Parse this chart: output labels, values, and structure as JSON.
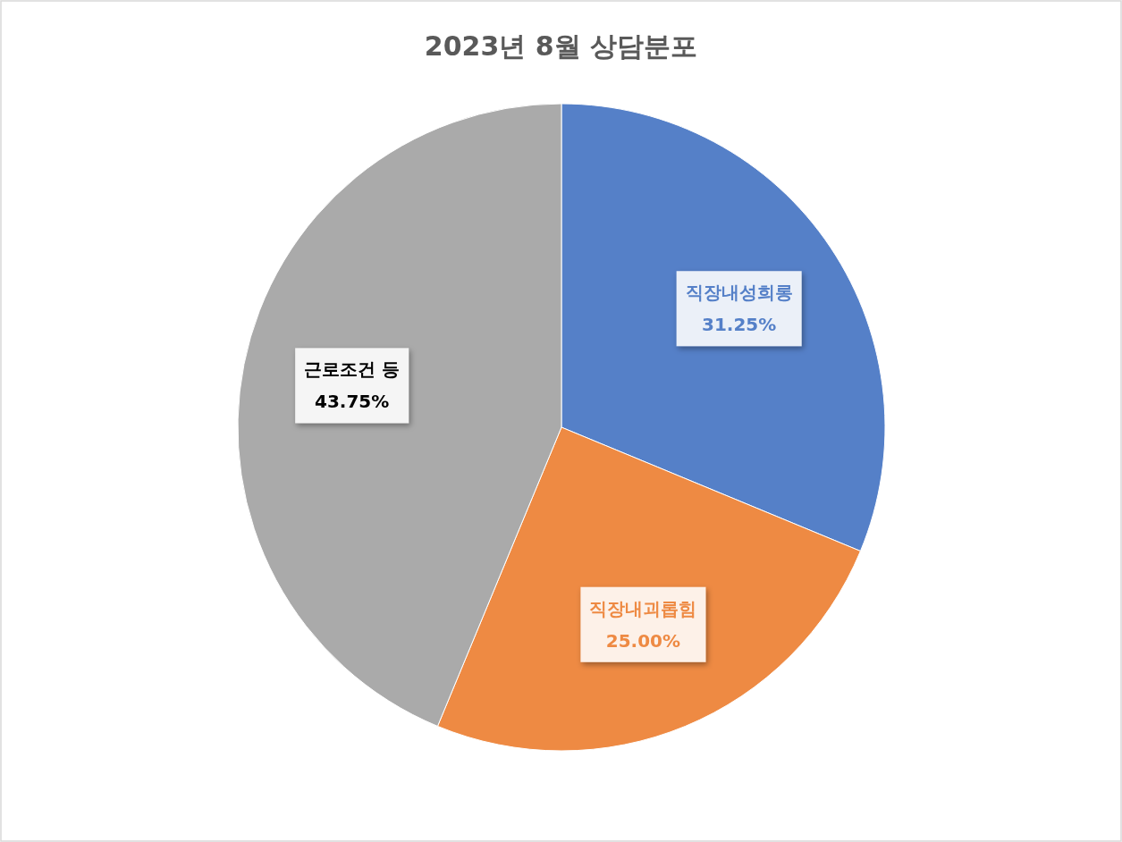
{
  "chart_data": {
    "type": "pie",
    "title": "2023년 8월 상담분포",
    "categories": [
      "직장내성희롱",
      "직장내괴롭힘",
      "근로조건 등"
    ],
    "values": [
      31.25,
      25,
      43.75
    ],
    "colors": [
      "#5580c8",
      "#ee8a43",
      "#aaaaaa"
    ],
    "value_labels": [
      "31.25%",
      "25.00%",
      "43.75%"
    ]
  }
}
